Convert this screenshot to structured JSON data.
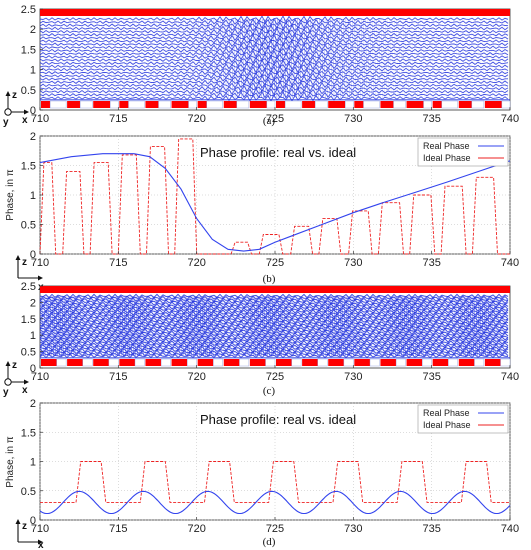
{
  "chart_data": [
    {
      "type": "heatmap",
      "panel": "a",
      "caption": "(a)",
      "x_ticks": [
        710,
        715,
        720,
        725,
        730,
        735,
        740
      ],
      "y_ticks": [
        0,
        0.5,
        1,
        1.5,
        2,
        2.5
      ],
      "xlim": [
        710,
        740
      ],
      "ylim": [
        0,
        2.5
      ],
      "axis_letters": [
        "z",
        "y",
        "x"
      ],
      "grating": "chirped",
      "colors": {
        "metal": "#ff0000",
        "field": "#2233dd"
      }
    },
    {
      "type": "line",
      "panel": "b",
      "caption": "(b)",
      "title": "Phase profile: real vs. ideal",
      "ylabel": "Phase, in π",
      "xlim": [
        710,
        740
      ],
      "ylim": [
        0,
        2
      ],
      "x_ticks": [
        710,
        715,
        720,
        725,
        730,
        735,
        740
      ],
      "y_ticks": [
        0,
        0.5,
        1,
        1.5,
        2
      ],
      "grid": true,
      "legend": "top-right",
      "axis_letters": [
        "z",
        "x"
      ],
      "series": [
        {
          "name": "Real Phase",
          "color": "#3344ee",
          "x": [
            710,
            712,
            714,
            716,
            717,
            718,
            719,
            720,
            721,
            722,
            723,
            724,
            725,
            726,
            728,
            730,
            732,
            734,
            736,
            738,
            740
          ],
          "y": [
            1.55,
            1.65,
            1.7,
            1.7,
            1.65,
            1.45,
            1.1,
            0.6,
            0.25,
            0.08,
            0.05,
            0.08,
            0.2,
            0.3,
            0.5,
            0.7,
            0.88,
            1.05,
            1.22,
            1.4,
            1.58
          ]
        },
        {
          "name": "Ideal Phase",
          "color": "#ee2222",
          "pulses": [
            {
              "start": 710.0,
              "end": 711.0,
              "top": 1.55
            },
            {
              "start": 711.45,
              "end": 712.8,
              "top": 1.4
            },
            {
              "start": 713.2,
              "end": 714.6,
              "top": 1.55
            },
            {
              "start": 715.0,
              "end": 716.4,
              "top": 1.68
            },
            {
              "start": 716.8,
              "end": 718.2,
              "top": 1.82
            },
            {
              "start": 718.6,
              "end": 720.0,
              "top": 1.95
            },
            {
              "start": 722.2,
              "end": 723.5,
              "top": 0.2
            },
            {
              "start": 724.0,
              "end": 725.5,
              "top": 0.33
            },
            {
              "start": 726.0,
              "end": 727.4,
              "top": 0.47
            },
            {
              "start": 727.8,
              "end": 729.2,
              "top": 0.6
            },
            {
              "start": 729.7,
              "end": 731.2,
              "top": 0.73
            },
            {
              "start": 731.6,
              "end": 733.2,
              "top": 0.87
            },
            {
              "start": 733.6,
              "end": 735.2,
              "top": 1.0
            },
            {
              "start": 735.6,
              "end": 737.2,
              "top": 1.15
            },
            {
              "start": 737.6,
              "end": 739.2,
              "top": 1.3
            }
          ]
        }
      ]
    },
    {
      "type": "heatmap",
      "panel": "c",
      "caption": "(c)",
      "x_ticks": [
        710,
        715,
        720,
        725,
        730,
        735,
        740
      ],
      "y_ticks": [
        0,
        0.5,
        1,
        1.5,
        2,
        2.5
      ],
      "xlim": [
        710,
        740
      ],
      "ylim": [
        0,
        2.5
      ],
      "axis_letters": [
        "z",
        "y",
        "x"
      ],
      "grating": "periodic",
      "colors": {
        "metal": "#ff0000",
        "field": "#2233dd"
      }
    },
    {
      "type": "line",
      "panel": "d",
      "caption": "(d)",
      "title": "Phase profile: real vs. ideal",
      "ylabel": "Phase, in π",
      "xlim": [
        710,
        740
      ],
      "ylim": [
        0,
        2
      ],
      "x_ticks": [
        710,
        715,
        720,
        725,
        730,
        735,
        740
      ],
      "y_ticks": [
        0,
        0.5,
        1,
        1.5,
        2
      ],
      "grid": true,
      "legend": "top-right",
      "axis_letters": [
        "z",
        "x"
      ],
      "series": [
        {
          "name": "Real Phase",
          "color": "#3344ee",
          "period": 4.1,
          "mean": 0.3,
          "amplitude": 0.19,
          "phase_x": 712.5
        },
        {
          "name": "Ideal Phase",
          "color": "#ee2222",
          "low": 0.3,
          "pulses": [
            {
              "start": 712.3,
              "end": 714.2,
              "top": 1.0
            },
            {
              "start": 716.4,
              "end": 718.3,
              "top": 1.0
            },
            {
              "start": 720.5,
              "end": 722.4,
              "top": 1.0
            },
            {
              "start": 724.6,
              "end": 726.5,
              "top": 1.0
            },
            {
              "start": 728.7,
              "end": 730.6,
              "top": 1.0
            },
            {
              "start": 732.8,
              "end": 734.7,
              "top": 1.0
            },
            {
              "start": 736.9,
              "end": 738.8,
              "top": 1.0
            }
          ]
        }
      ]
    }
  ]
}
